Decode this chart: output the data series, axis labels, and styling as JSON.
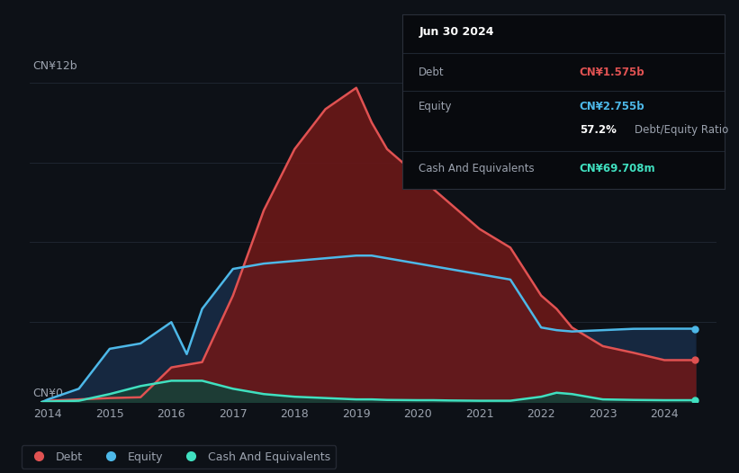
{
  "background_color": "#0d1117",
  "plot_bg_color": "#0d1117",
  "debt_color": "#e05252",
  "equity_color": "#4db8e8",
  "cash_color": "#40e0c0",
  "debt_fill": "#6b1818",
  "equity_fill": "#162840",
  "cash_fill": "#164038",
  "grid_color": "#1e2530",
  "text_color": "#9ca3af",
  "divider_color": "#1e2530",
  "years": [
    2013.9,
    2014.0,
    2014.5,
    2015.0,
    2015.5,
    2016.0,
    2016.25,
    2016.5,
    2017.0,
    2017.5,
    2018.0,
    2018.5,
    2019.0,
    2019.25,
    2019.5,
    2020.0,
    2020.25,
    2020.5,
    2021.0,
    2021.5,
    2022.0,
    2022.25,
    2022.5,
    2023.0,
    2023.5,
    2024.0,
    2024.5
  ],
  "debt": [
    0.0,
    0.05,
    0.1,
    0.15,
    0.18,
    1.3,
    1.4,
    1.5,
    4.0,
    7.2,
    9.5,
    11.0,
    11.8,
    10.5,
    9.5,
    8.5,
    8.0,
    7.5,
    6.5,
    5.8,
    4.0,
    3.5,
    2.8,
    2.1,
    1.85,
    1.575,
    1.575
  ],
  "equity": [
    0.0,
    0.1,
    0.5,
    2.0,
    2.2,
    3.0,
    1.8,
    3.5,
    5.0,
    5.2,
    5.3,
    5.4,
    5.5,
    5.5,
    5.4,
    5.2,
    5.1,
    5.0,
    4.8,
    4.6,
    2.8,
    2.7,
    2.65,
    2.7,
    2.75,
    2.755,
    2.755
  ],
  "cash": [
    0.0,
    0.02,
    0.05,
    0.3,
    0.6,
    0.8,
    0.8,
    0.8,
    0.5,
    0.3,
    0.2,
    0.15,
    0.1,
    0.1,
    0.08,
    0.07,
    0.07,
    0.06,
    0.05,
    0.05,
    0.2,
    0.35,
    0.3,
    0.1,
    0.08,
    0.07,
    0.07
  ],
  "xlim": [
    2013.7,
    2024.85
  ],
  "ylim": [
    0,
    13.5
  ],
  "xticks": [
    2014,
    2015,
    2016,
    2017,
    2018,
    2019,
    2020,
    2021,
    2022,
    2023,
    2024
  ],
  "legend_labels": [
    "Debt",
    "Equity",
    "Cash And Equivalents"
  ],
  "legend_colors": [
    "#e05252",
    "#4db8e8",
    "#40e0c0"
  ],
  "tooltip_date": "Jun 30 2024",
  "tooltip_debt_label": "Debt",
  "tooltip_debt_value": "CN¥1.575b",
  "tooltip_equity_label": "Equity",
  "tooltip_equity_value": "CN¥2.755b",
  "tooltip_ratio_pct": "57.2%",
  "tooltip_ratio_text": "Debt/Equity Ratio",
  "tooltip_cash_label": "Cash And Equivalents",
  "tooltip_cash_value": "CN¥69.708m",
  "ylabel_top": "CN¥12b",
  "ylabel_bottom": "CN¥0"
}
